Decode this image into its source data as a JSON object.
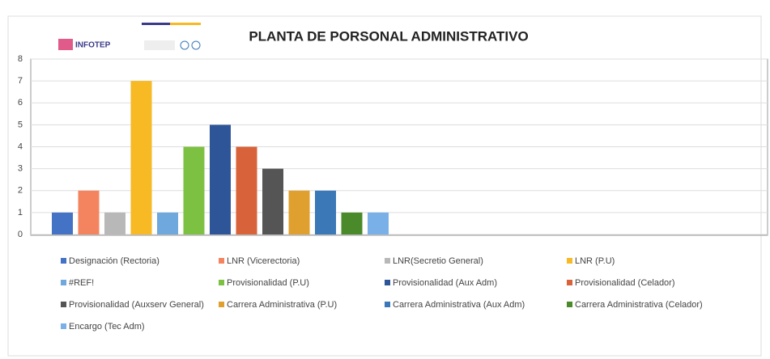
{
  "logo": {
    "text": "INFOTEP"
  },
  "chart_data": {
    "type": "bar",
    "title": "PLANTA DE PORSONAL ADMINISTRATIVO",
    "categories": [
      null
    ],
    "ylim": [
      0,
      8
    ],
    "yticks": [
      0,
      1,
      2,
      3,
      4,
      5,
      6,
      7,
      8
    ],
    "grid": true,
    "series": [
      {
        "name": "Designación (Rectoria)",
        "color": "#4472c4",
        "values": [
          1
        ]
      },
      {
        "name": "LNR (Vicerectoria)",
        "color": "#f4845f",
        "values": [
          2
        ]
      },
      {
        "name": "LNR(Secretio General)",
        "color": "#b8b8b8",
        "values": [
          1
        ]
      },
      {
        "name": "LNR (P.U)",
        "color": "#f7b924",
        "values": [
          7
        ]
      },
      {
        "name": "#REF!",
        "color": "#6fa8dc",
        "values": [
          1
        ]
      },
      {
        "name": "Provisionalidad (P.U)",
        "color": "#7cc142",
        "values": [
          4
        ]
      },
      {
        "name": "Provisionalidad (Aux Adm)",
        "color": "#2e5597",
        "values": [
          5
        ]
      },
      {
        "name": "Provisionalidad (Celador)",
        "color": "#d8623a",
        "values": [
          4
        ]
      },
      {
        "name": "Provisionalidad (Auxserv General)",
        "color": "#555555",
        "values": [
          3
        ]
      },
      {
        "name": "Carrera Administrativa (P.U)",
        "color": "#e0a030",
        "values": [
          2
        ]
      },
      {
        "name": "Carrera Administrativa (Aux Adm)",
        "color": "#3a78b8",
        "values": [
          2
        ]
      },
      {
        "name": "Carrera Administrativa (Celador)",
        "color": "#4a8a2a",
        "values": [
          1
        ]
      },
      {
        "name": "Encargo (Tec Adm)",
        "color": "#7ab0e8",
        "values": [
          1
        ]
      }
    ]
  }
}
